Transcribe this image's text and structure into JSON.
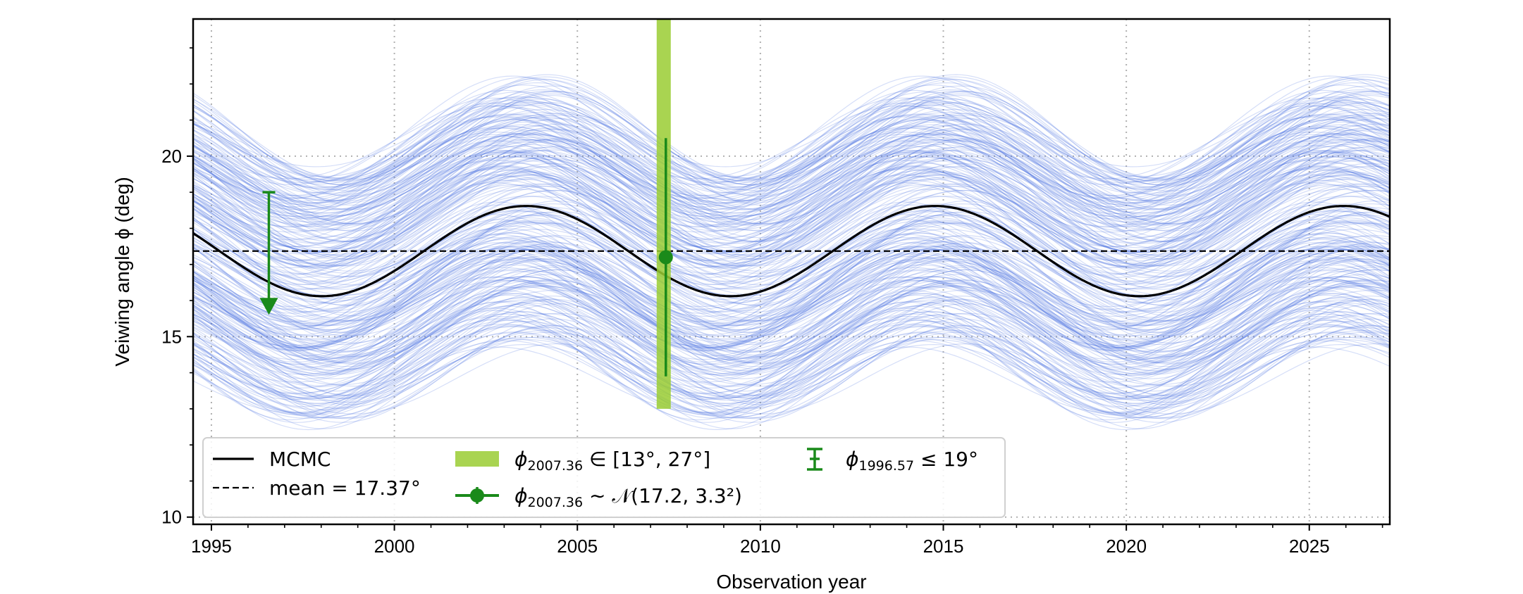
{
  "chart_data": {
    "type": "line",
    "title": "",
    "xlabel": "Observation year",
    "ylabel": "Veiwing angle ϕ (deg)",
    "xlim": [
      1994.5,
      2027.2
    ],
    "ylim": [
      9.8,
      23.8
    ],
    "xticks": [
      1995,
      2000,
      2005,
      2010,
      2015,
      2020,
      2025
    ],
    "xtick_labels": [
      "1995",
      "2000",
      "2005",
      "2010",
      "2015",
      "2020",
      "2025"
    ],
    "yticks": [
      10,
      15,
      20
    ],
    "ytick_labels": [
      "10",
      "15",
      "20"
    ],
    "grid": true,
    "mcmc_curve": {
      "name": "MCMC",
      "color": "#000000",
      "mean": 17.37,
      "amplitude": 1.25,
      "period": 11.17,
      "peak_year": 2003.6
    },
    "mean_line": {
      "name": "mean = 17.37°",
      "value": 17.37,
      "style": "dashed",
      "color": "#000000"
    },
    "mcmc_samples": {
      "count": 300,
      "color": "#4169e1",
      "mean_range": [
        13.8,
        20.8
      ],
      "amplitude_range": [
        0.9,
        1.6
      ],
      "period": 11.17,
      "peak_year_spread": 0.9
    },
    "constraint_range": {
      "label_prefix": "ϕ",
      "label_sub": "2007.36",
      "label_suffix": " ∈ [13°, 27°]",
      "x": 2007.36,
      "ymin": 13,
      "ymax": 27,
      "color": "#9acd32"
    },
    "constraint_gaussian": {
      "label_prefix": "ϕ",
      "label_sub": "2007.36",
      "label_suffix": " ∼ 𝒩(17.2, 3.3²)",
      "x": 2007.36,
      "mean": 17.2,
      "sigma": 3.3,
      "color": "#1a8a1a"
    },
    "upper_limit": {
      "label_prefix": "ϕ",
      "label_sub": "1996.57",
      "label_suffix": " ≤ 19°",
      "x": 1996.57,
      "value": 19,
      "arrow_to": 15.8,
      "color": "#1a8a1a"
    },
    "legend": {
      "placement": "lower-left",
      "ncol": 3
    }
  }
}
